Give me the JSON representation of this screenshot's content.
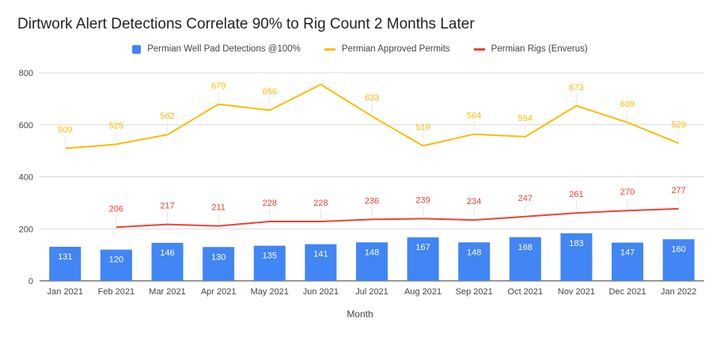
{
  "chart_data": {
    "type": "bar",
    "title": "Dirtwork Alert Detections Correlate 90% to Rig Count 2 Months Later",
    "xlabel": "Month",
    "ylabel": "",
    "ylim": [
      0,
      800
    ],
    "yticks": [
      0,
      200,
      400,
      600,
      800
    ],
    "grid": true,
    "legend_position": "top",
    "categories": [
      "Jan 2021",
      "Feb 2021",
      "Mar 2021",
      "Apr 2021",
      "May 2021",
      "Jun 2021",
      "Jul 2021",
      "Aug 2021",
      "Sep 2021",
      "Oct 2021",
      "Nov 2021",
      "Dec 2021",
      "Jan 2022"
    ],
    "series": [
      {
        "name": "Permian Well Pad Detections @100%",
        "type": "bar",
        "color": "#4285f4",
        "values": [
          131,
          120,
          146,
          130,
          135,
          141,
          148,
          167,
          148,
          168,
          183,
          147,
          160
        ],
        "labels": [
          "131",
          "120",
          "146",
          "130",
          "135",
          "141",
          "148",
          "167",
          "148",
          "168",
          "183",
          "147",
          "160"
        ]
      },
      {
        "name": "Permian Approved Permits",
        "type": "line",
        "color": "#fbbc04",
        "values": [
          509,
          525,
          562,
          679,
          656,
          755,
          633,
          519,
          564,
          554,
          673,
          609,
          529
        ],
        "labels": [
          "509",
          "525",
          "562",
          "679",
          "656",
          "",
          "633",
          "519",
          "564",
          "554",
          "673",
          "609",
          "529"
        ]
      },
      {
        "name": "Permian Rigs (Enverus)",
        "type": "line",
        "color": "#ea4335",
        "values": [
          null,
          206,
          217,
          211,
          228,
          228,
          236,
          239,
          234,
          247,
          261,
          270,
          277
        ],
        "labels": [
          "",
          "206",
          "217",
          "211",
          "228",
          "228",
          "236",
          "239",
          "234",
          "247",
          "261",
          "270",
          "277"
        ]
      }
    ]
  }
}
